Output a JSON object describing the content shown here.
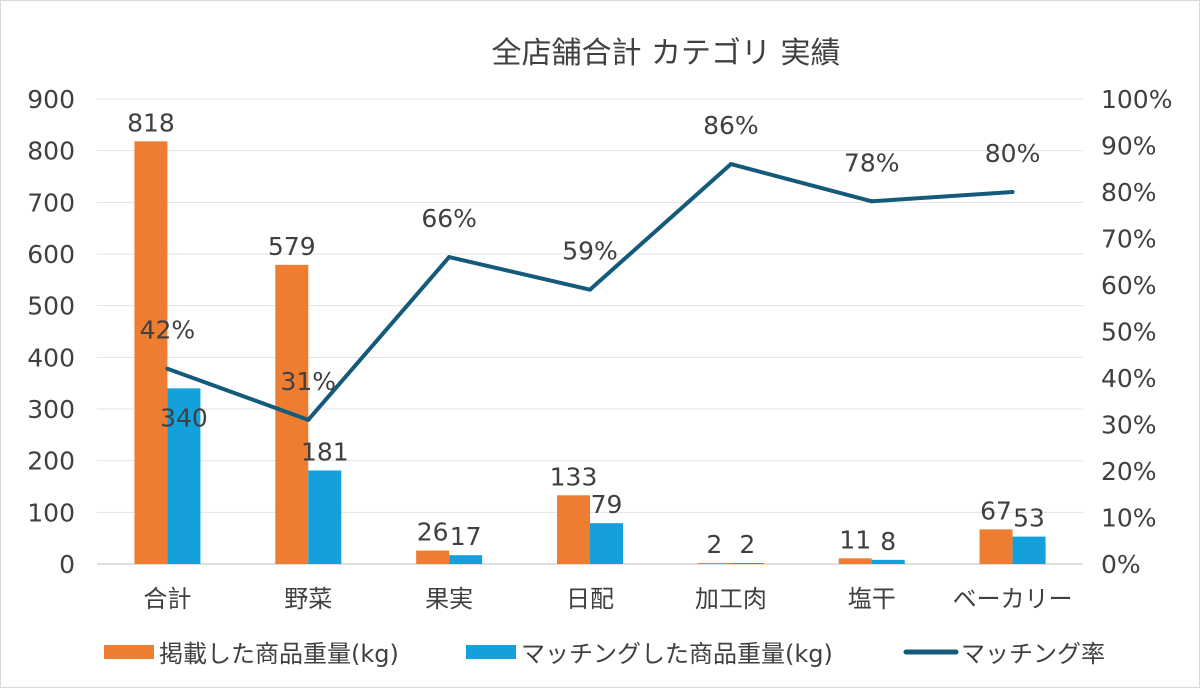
{
  "chart_data": {
    "type": "bar+line",
    "title": "全店舗合計 カテゴリ 実績",
    "categories": [
      "合計",
      "野菜",
      "果実",
      "日配",
      "加工肉",
      "塩干",
      "ベーカリー"
    ],
    "series": [
      {
        "name": "掲載した商品重量(kg)",
        "type": "bar",
        "axis": "left",
        "color": "#ED7D31",
        "values": [
          818,
          579,
          26,
          133,
          2,
          11,
          67
        ]
      },
      {
        "name": "マッチングした商品重量(kg)",
        "type": "bar",
        "axis": "left",
        "color": "#13A0DB",
        "values": [
          340,
          181,
          17,
          79,
          2,
          8,
          53
        ]
      },
      {
        "name": "マッチング率",
        "type": "line",
        "axis": "right",
        "color": "#145A7A",
        "values": [
          42,
          31,
          66,
          59,
          86,
          78,
          80
        ],
        "labels": [
          "42%",
          "31%",
          "66%",
          "59%",
          "86%",
          "78%",
          "80%"
        ]
      }
    ],
    "ylim": [
      0,
      900
    ],
    "yticks": [
      "0",
      "100",
      "200",
      "300",
      "400",
      "500",
      "600",
      "700",
      "800",
      "900"
    ],
    "y2lim": [
      0,
      100
    ],
    "y2ticks": [
      "0%",
      "10%",
      "20%",
      "30%",
      "40%",
      "50%",
      "60%",
      "70%",
      "80%",
      "90%",
      "100%"
    ],
    "grid": true,
    "legend": "bottom"
  }
}
